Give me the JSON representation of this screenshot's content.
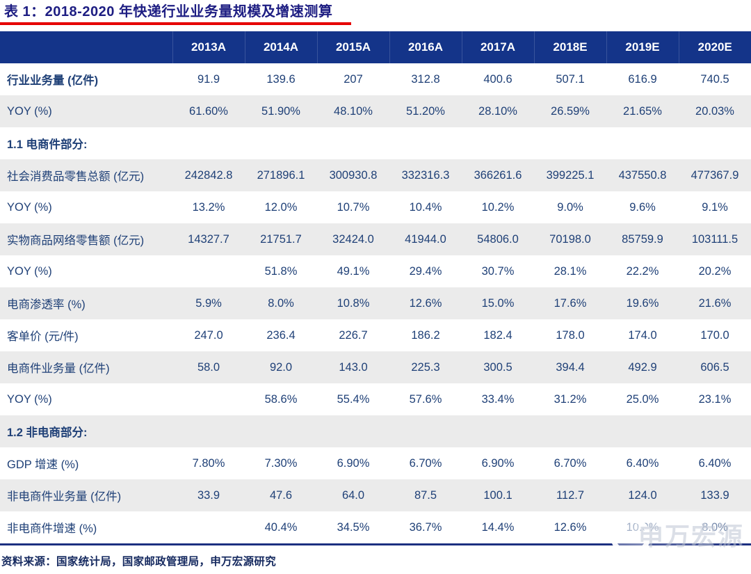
{
  "colors": {
    "header_bg": "#143489",
    "title_text": "#1d1d82",
    "body_text": "#1f4077",
    "gray_row": "#ebebeb",
    "accent_red": "#e60000",
    "bottom_rule": "#1c2f80"
  },
  "chart_data": {
    "type": "table",
    "title": "表 1：2018-2020 年快递行业业务量规模及增速测算",
    "columns": [
      "2013A",
      "2014A",
      "2015A",
      "2016A",
      "2017A",
      "2018E",
      "2019E",
      "2020E"
    ],
    "rows": [
      {
        "label": "行业业务量 (亿件)",
        "bold": true,
        "values": [
          "91.9",
          "139.6",
          "207",
          "312.8",
          "400.6",
          "507.1",
          "616.9",
          "740.5"
        ]
      },
      {
        "label": "YOY (%)",
        "values": [
          "61.60%",
          "51.90%",
          "48.10%",
          "51.20%",
          "28.10%",
          "26.59%",
          "21.65%",
          "20.03%"
        ]
      },
      {
        "label": "1.1 电商件部分:",
        "section": true
      },
      {
        "label": "社会消费品零售总额 (亿元)",
        "values": [
          "242842.8",
          "271896.1",
          "300930.8",
          "332316.3",
          "366261.6",
          "399225.1",
          "437550.8",
          "477367.9"
        ]
      },
      {
        "label": "YOY (%)",
        "values": [
          "13.2%",
          "12.0%",
          "10.7%",
          "10.4%",
          "10.2%",
          "9.0%",
          "9.6%",
          "9.1%"
        ]
      },
      {
        "label": "实物商品网络零售额 (亿元)",
        "values": [
          "14327.7",
          "21751.7",
          "32424.0",
          "41944.0",
          "54806.0",
          "70198.0",
          "85759.9",
          "103111.5"
        ]
      },
      {
        "label": "YOY (%)",
        "values": [
          "",
          "51.8%",
          "49.1%",
          "29.4%",
          "30.7%",
          "28.1%",
          "22.2%",
          "20.2%"
        ]
      },
      {
        "label": "电商渗透率 (%)",
        "values": [
          "5.9%",
          "8.0%",
          "10.8%",
          "12.6%",
          "15.0%",
          "17.6%",
          "19.6%",
          "21.6%"
        ]
      },
      {
        "label": "客单价 (元/件)",
        "values": [
          "247.0",
          "236.4",
          "226.7",
          "186.2",
          "182.4",
          "178.0",
          "174.0",
          "170.0"
        ]
      },
      {
        "label": "电商件业务量 (亿件)",
        "values": [
          "58.0",
          "92.0",
          "143.0",
          "225.3",
          "300.5",
          "394.4",
          "492.9",
          "606.5"
        ]
      },
      {
        "label": "YOY (%)",
        "values": [
          "",
          "58.6%",
          "55.4%",
          "57.6%",
          "33.4%",
          "31.2%",
          "25.0%",
          "23.1%"
        ]
      },
      {
        "label": "1.2 非电商部分:",
        "section": true
      },
      {
        "label": "GDP 增速 (%)",
        "values": [
          "7.80%",
          "7.30%",
          "6.90%",
          "6.70%",
          "6.90%",
          "6.70%",
          "6.40%",
          "6.40%"
        ]
      },
      {
        "label": "非电商件业务量 (亿件)",
        "values": [
          "33.9",
          "47.6",
          "64.0",
          "87.5",
          "100.1",
          "112.7",
          "124.0",
          "133.9"
        ]
      },
      {
        "label": "非电商件增速 (%)",
        "values": [
          "",
          "40.4%",
          "34.5%",
          "36.7%",
          "14.4%",
          "12.6%",
          "10.0%",
          "8.0%"
        ]
      }
    ]
  },
  "footer": {
    "source": "资料来源：国家统计局，国家邮政管理局，申万宏源研究"
  },
  "watermark": {
    "text": "申万宏源"
  }
}
